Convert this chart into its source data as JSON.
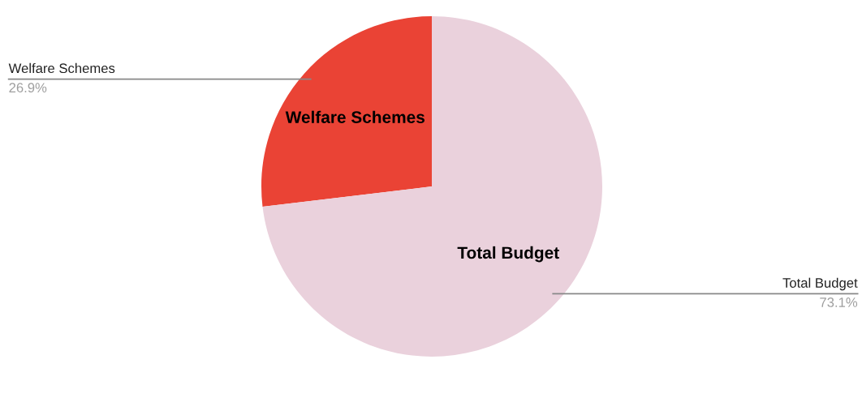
{
  "chart_data": {
    "type": "pie",
    "categories": [
      "Welfare Schemes",
      "Total Budget"
    ],
    "values": [
      26.9,
      73.1
    ],
    "colors": [
      "#ea4335",
      "#ead1dc"
    ],
    "value_labels": [
      "26.9%",
      "73.1%"
    ]
  }
}
